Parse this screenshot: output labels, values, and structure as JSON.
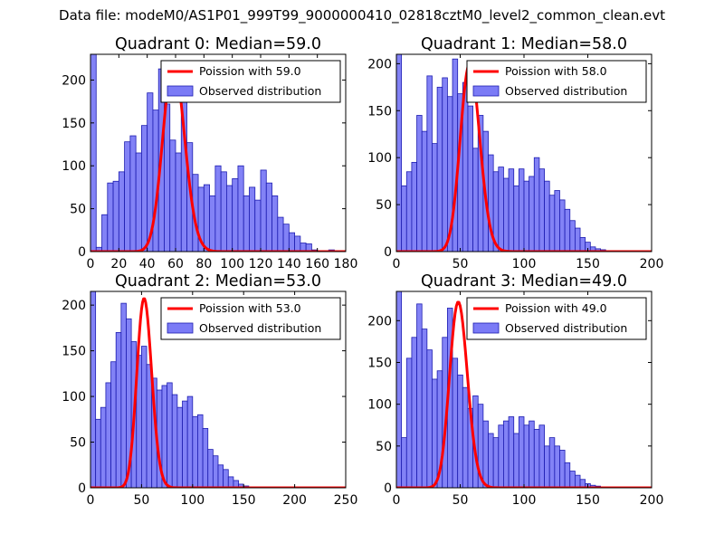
{
  "figure": {
    "suptitle": "Data file: modeM0/AS1P01_999T99_9000000410_02818cztM0_level2_common_clean.evt"
  },
  "colors": {
    "hist_fill": "#7b7bf6",
    "hist_edge": "#1d1db0",
    "poisson_line": "#ff0000",
    "axes": "#000000"
  },
  "chart_data": [
    {
      "type": "bar",
      "title": "Quadrant 0: Median=59.0",
      "xlabel": "",
      "ylabel": "",
      "xlim": [
        0,
        180
      ],
      "ylim": [
        0,
        230
      ],
      "xticks": [
        0,
        20,
        40,
        60,
        80,
        100,
        120,
        140,
        160,
        180
      ],
      "xtick_labels": [
        "0",
        "20",
        "40",
        "60",
        "80",
        "100",
        "120",
        "140",
        "160",
        "180"
      ],
      "yticks": [
        0,
        50,
        100,
        150,
        200
      ],
      "ytick_labels": [
        "0",
        "50",
        "100",
        "150",
        "200"
      ],
      "bin_start": 0,
      "bin_width": 4,
      "legend": {
        "position": "top-right",
        "entries": [
          "Poission with 59.0",
          "Observed distribution"
        ]
      },
      "series": [
        {
          "name": "Observed distribution",
          "kind": "hist",
          "values": [
            230,
            5,
            43,
            80,
            82,
            93,
            128,
            135,
            115,
            147,
            185,
            165,
            213,
            172,
            130,
            115,
            178,
            127,
            90,
            75,
            78,
            65,
            100,
            93,
            77,
            85,
            100,
            65,
            75,
            60,
            95,
            80,
            65,
            40,
            32,
            22,
            18,
            10,
            9,
            2,
            1,
            0,
            2,
            0,
            1
          ]
        },
        {
          "name": "Poission with 59.0",
          "kind": "poisson",
          "mean": 59.0,
          "scale": 220
        }
      ]
    },
    {
      "type": "bar",
      "title": "Quadrant 1: Median=58.0",
      "xlabel": "",
      "ylabel": "",
      "xlim": [
        0,
        200
      ],
      "ylim": [
        0,
        210
      ],
      "xticks": [
        0,
        50,
        100,
        150,
        200
      ],
      "xtick_labels": [
        "0",
        "50",
        "100",
        "150",
        "200"
      ],
      "yticks": [
        0,
        50,
        100,
        150,
        200
      ],
      "ytick_labels": [
        "0",
        "50",
        "100",
        "150",
        "200"
      ],
      "bin_start": 0,
      "bin_width": 4,
      "legend": {
        "position": "top-right",
        "entries": [
          "Poission with 58.0",
          "Observed distribution"
        ]
      },
      "series": [
        {
          "name": "Observed distribution",
          "kind": "hist",
          "values": [
            210,
            70,
            85,
            95,
            145,
            128,
            187,
            115,
            175,
            185,
            165,
            205,
            168,
            180,
            155,
            110,
            145,
            128,
            103,
            85,
            90,
            78,
            88,
            70,
            88,
            75,
            80,
            100,
            88,
            75,
            60,
            65,
            55,
            45,
            33,
            25,
            15,
            10,
            5,
            3,
            2,
            1,
            1,
            0,
            0,
            0,
            0,
            0,
            0,
            0
          ]
        },
        {
          "name": "Poission with 58.0",
          "kind": "poisson",
          "mean": 58.0,
          "scale": 200
        }
      ]
    },
    {
      "type": "bar",
      "title": "Quadrant 2: Median=53.0",
      "xlabel": "",
      "ylabel": "",
      "xlim": [
        0,
        250
      ],
      "ylim": [
        0,
        215
      ],
      "xticks": [
        0,
        50,
        100,
        150,
        200,
        250
      ],
      "xtick_labels": [
        "0",
        "50",
        "100",
        "150",
        "200",
        "250"
      ],
      "yticks": [
        0,
        50,
        100,
        150,
        200
      ],
      "ytick_labels": [
        "0",
        "50",
        "100",
        "150",
        "200"
      ],
      "bin_start": 0,
      "bin_width": 5,
      "legend": {
        "position": "top-right",
        "entries": [
          "Poission with 53.0",
          "Observed distribution"
        ]
      },
      "series": [
        {
          "name": "Observed distribution",
          "kind": "hist",
          "values": [
            215,
            75,
            88,
            115,
            138,
            170,
            202,
            185,
            160,
            145,
            155,
            135,
            120,
            107,
            112,
            115,
            102,
            88,
            95,
            100,
            78,
            80,
            65,
            42,
            35,
            25,
            20,
            12,
            8,
            4,
            2,
            1,
            0,
            0,
            0,
            0,
            0,
            0,
            0,
            0,
            0,
            0,
            0,
            0,
            0,
            0,
            0,
            0,
            0,
            0
          ]
        },
        {
          "name": "Poission with 53.0",
          "kind": "poisson",
          "mean": 53.0,
          "scale": 207
        }
      ]
    },
    {
      "type": "bar",
      "title": "Quadrant 3: Median=49.0",
      "xlabel": "",
      "ylabel": "",
      "xlim": [
        0,
        200
      ],
      "ylim": [
        0,
        235
      ],
      "xticks": [
        0,
        50,
        100,
        150,
        200
      ],
      "xtick_labels": [
        "0",
        "50",
        "100",
        "150",
        "200"
      ],
      "yticks": [
        0,
        50,
        100,
        150,
        200
      ],
      "ytick_labels": [
        "0",
        "50",
        "100",
        "150",
        "200"
      ],
      "bin_start": 0,
      "bin_width": 4,
      "legend": {
        "position": "top-right",
        "entries": [
          "Poission with 49.0",
          "Observed distribution"
        ]
      },
      "series": [
        {
          "name": "Observed distribution",
          "kind": "hist",
          "values": [
            235,
            60,
            155,
            180,
            220,
            190,
            165,
            130,
            140,
            180,
            215,
            155,
            135,
            120,
            95,
            110,
            100,
            80,
            65,
            60,
            75,
            80,
            85,
            65,
            85,
            75,
            80,
            70,
            75,
            50,
            60,
            50,
            45,
            30,
            20,
            15,
            10,
            5,
            3,
            2,
            1,
            1,
            0,
            0,
            0,
            0,
            0,
            0,
            0,
            0
          ]
        },
        {
          "name": "Poission with 49.0",
          "kind": "poisson",
          "mean": 49.0,
          "scale": 222
        }
      ]
    }
  ]
}
